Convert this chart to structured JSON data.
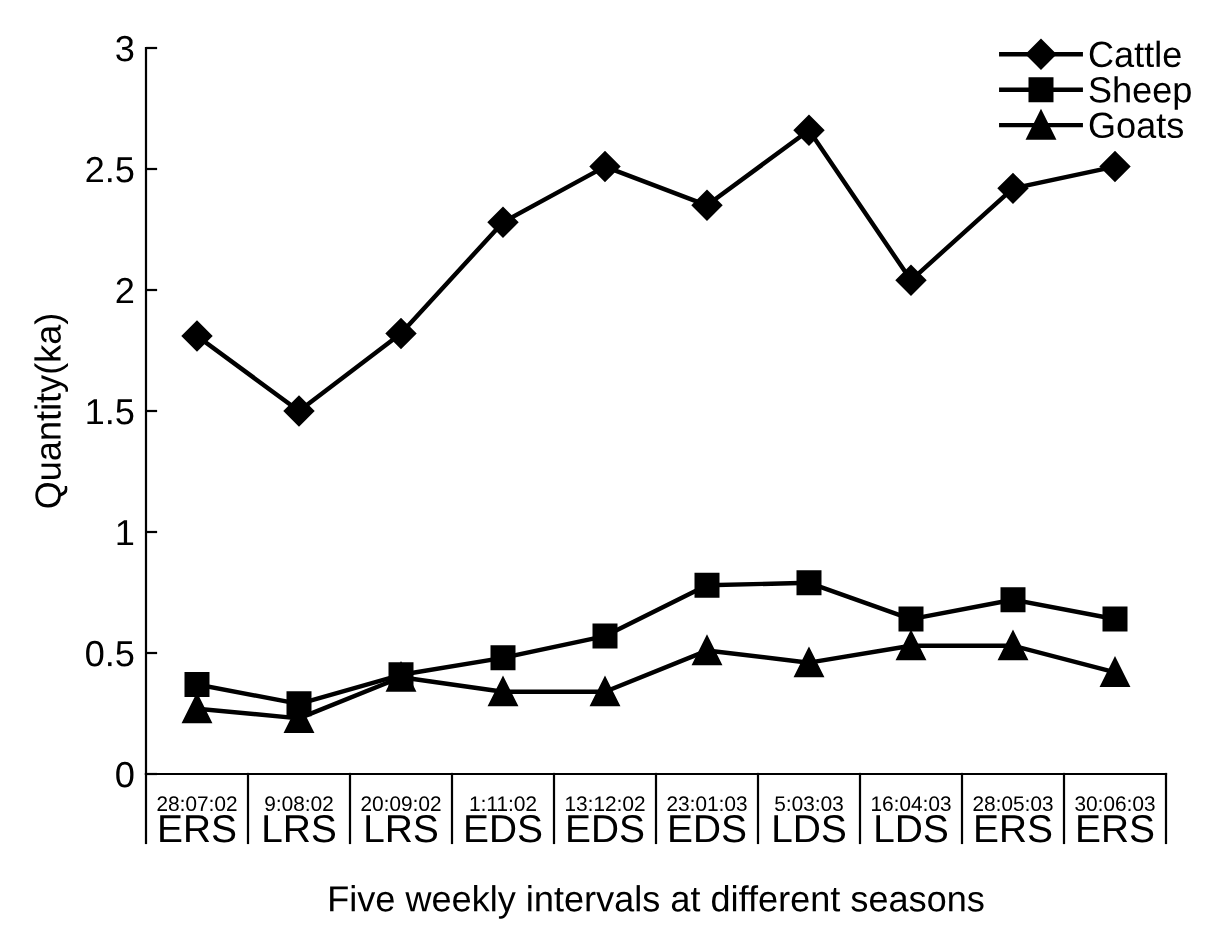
{
  "chart_data": {
    "type": "line",
    "xlabel": "Five weekly intervals at different seasons",
    "ylabel": "Quantity(ka)",
    "categories": [
      "28:07:02\nERS",
      "9:08:02\nLRS",
      "20:09:02\nLRS",
      "1:11:02\nEDS",
      "13:12:02\nEDS",
      "23:01:03\nEDS",
      "5:03:03\nLDS",
      "16:04:03\nLDS",
      "28:05:03\nERS",
      "30:06:03\nERS"
    ],
    "series": [
      {
        "name": "Cattle",
        "color": "#000000",
        "marker": "diamond",
        "values": [
          1.81,
          1.5,
          1.82,
          2.28,
          2.51,
          2.35,
          2.66,
          2.04,
          2.42,
          2.51
        ]
      },
      {
        "name": "Sheep",
        "color": "#000000",
        "marker": "square",
        "values": [
          0.37,
          0.29,
          0.41,
          0.48,
          0.57,
          0.78,
          0.79,
          0.64,
          0.72,
          0.64
        ]
      },
      {
        "name": "Goats",
        "color": "#000000",
        "marker": "triangle",
        "values": [
          0.27,
          0.23,
          0.4,
          0.34,
          0.34,
          0.51,
          0.46,
          0.53,
          0.53,
          0.42
        ]
      }
    ],
    "ylim": [
      0,
      3
    ],
    "yticks": [
      0,
      0.5,
      1,
      1.5,
      2,
      2.5,
      3
    ],
    "grid": false,
    "legend": "top right",
    "line_style": "solid"
  }
}
